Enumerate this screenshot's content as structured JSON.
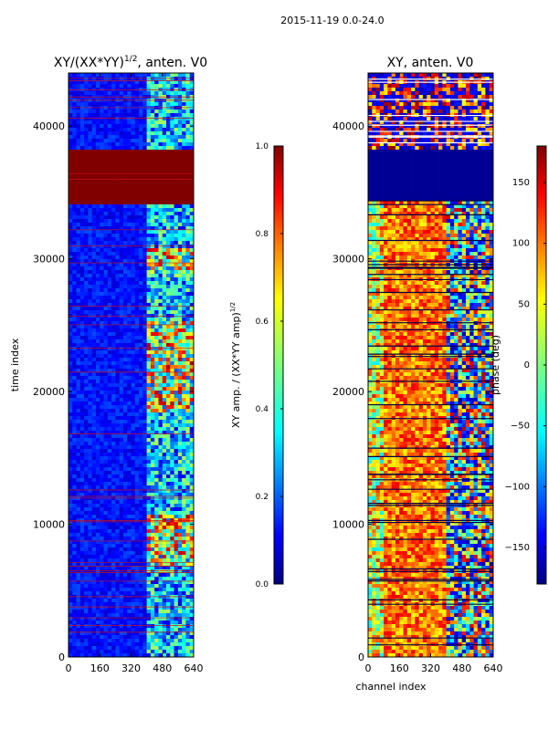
{
  "figure": {
    "suptitle": "2015-11-19 0.0-24.0"
  },
  "chart_data": [
    {
      "type": "heatmap",
      "title_main": "XY/(XX*YY)",
      "title_exp": "1/2",
      "title_tail": ", anten. V0",
      "xlabel": "",
      "ylabel": "time index",
      "xlim": [
        0,
        640
      ],
      "ylim": [
        0,
        44000
      ],
      "xticks": [
        "0",
        "160",
        "320",
        "480",
        "640"
      ],
      "xtick_values": [
        0,
        160,
        320,
        480,
        640
      ],
      "yticks": [
        "0",
        "10000",
        "20000",
        "30000",
        "40000"
      ],
      "ytick_values": [
        0,
        10000,
        20000,
        30000,
        40000
      ],
      "colorbar": {
        "label_main": "XY amp. / (XX*YY amp)",
        "label_exp": "1/2",
        "range": [
          0.0,
          1.0
        ],
        "ticks": [
          "0.0",
          "0.2",
          "0.4",
          "0.6",
          "0.8",
          "1.0"
        ],
        "tick_values": [
          0.0,
          0.2,
          0.4,
          0.6,
          0.8,
          1.0
        ],
        "colormap": "jet"
      }
    },
    {
      "type": "heatmap",
      "title": "XY, anten. V0",
      "xlabel": "channel index",
      "ylabel": "",
      "xlim": [
        0,
        640
      ],
      "ylim": [
        0,
        44000
      ],
      "xticks": [
        "0",
        "160",
        "320",
        "480",
        "640"
      ],
      "xtick_values": [
        0,
        160,
        320,
        480,
        640
      ],
      "yticks": [
        "0",
        "10000",
        "20000",
        "30000",
        "40000"
      ],
      "ytick_values": [
        0,
        10000,
        20000,
        30000,
        40000
      ],
      "colorbar": {
        "label": "phase (deg)",
        "range": [
          -180,
          180
        ],
        "ticks": [
          "−150",
          "−100",
          "−50",
          "0",
          "50",
          "100",
          "150"
        ],
        "tick_values": [
          -150,
          -100,
          -50,
          0,
          50,
          100,
          150
        ],
        "colormap": "jet"
      }
    }
  ],
  "colors": {
    "jet_0": "#00007f",
    "jet_1": "#0000ff",
    "jet_2": "#00ffff",
    "jet_3": "#7fff7f",
    "jet_4": "#ffff00",
    "jet_5": "#ff0000",
    "jet_6": "#7f0000"
  }
}
